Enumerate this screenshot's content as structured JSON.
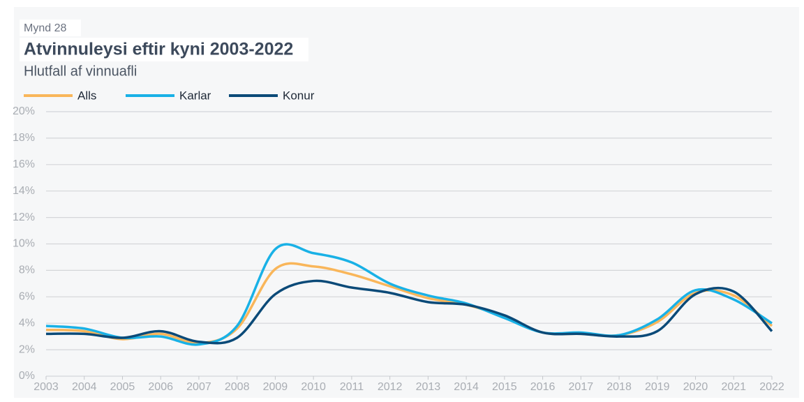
{
  "chart_data": {
    "type": "line",
    "figure_label": "Mynd 28",
    "title": "Atvinnuleysi eftir kyni 2003-2022",
    "subtitle": "Hlutfall af vinnuafli",
    "x": [
      2003,
      2004,
      2005,
      2006,
      2007,
      2008,
      2009,
      2010,
      2011,
      2012,
      2013,
      2014,
      2015,
      2016,
      2017,
      2018,
      2019,
      2020,
      2021,
      2022
    ],
    "series": [
      {
        "name": "Alls",
        "color": "#f9b65a",
        "values": [
          3.5,
          3.4,
          2.8,
          3.2,
          2.5,
          3.6,
          8.1,
          8.3,
          7.7,
          6.8,
          5.9,
          5.4,
          4.5,
          3.3,
          3.2,
          3.1,
          4.1,
          6.3,
          6.1,
          3.8
        ]
      },
      {
        "name": "Karlar",
        "color": "#19b1e6",
        "values": [
          3.8,
          3.6,
          2.9,
          3.0,
          2.4,
          3.8,
          9.6,
          9.3,
          8.6,
          7.0,
          6.1,
          5.5,
          4.4,
          3.3,
          3.3,
          3.1,
          4.3,
          6.5,
          5.8,
          4.0
        ]
      },
      {
        "name": "Konur",
        "color": "#0b4a78",
        "values": [
          3.2,
          3.2,
          2.9,
          3.4,
          2.6,
          2.9,
          6.2,
          7.2,
          6.7,
          6.3,
          5.6,
          5.4,
          4.6,
          3.3,
          3.2,
          3.0,
          3.4,
          6.2,
          6.4,
          3.4
        ]
      }
    ],
    "xlim": [
      2003,
      2022
    ],
    "xticks": [
      2003,
      2004,
      2005,
      2006,
      2007,
      2008,
      2009,
      2010,
      2011,
      2012,
      2013,
      2014,
      2015,
      2016,
      2017,
      2018,
      2019,
      2020,
      2021,
      2022
    ],
    "ylim": [
      0,
      20
    ],
    "yticks": [
      {
        "value": 0,
        "label": "0%"
      },
      {
        "value": 2,
        "label": "2%"
      },
      {
        "value": 4,
        "label": "4%"
      },
      {
        "value": 6,
        "label": "6%"
      },
      {
        "value": 8,
        "label": "8%"
      },
      {
        "value": 10,
        "label": "10%"
      },
      {
        "value": 12,
        "label": "12%"
      },
      {
        "value": 14,
        "label": "14%"
      },
      {
        "value": 16,
        "label": "16%"
      },
      {
        "value": 18,
        "label": "18%"
      },
      {
        "value": 20,
        "label": "20%"
      }
    ],
    "grid": true,
    "legend": "top-left"
  }
}
